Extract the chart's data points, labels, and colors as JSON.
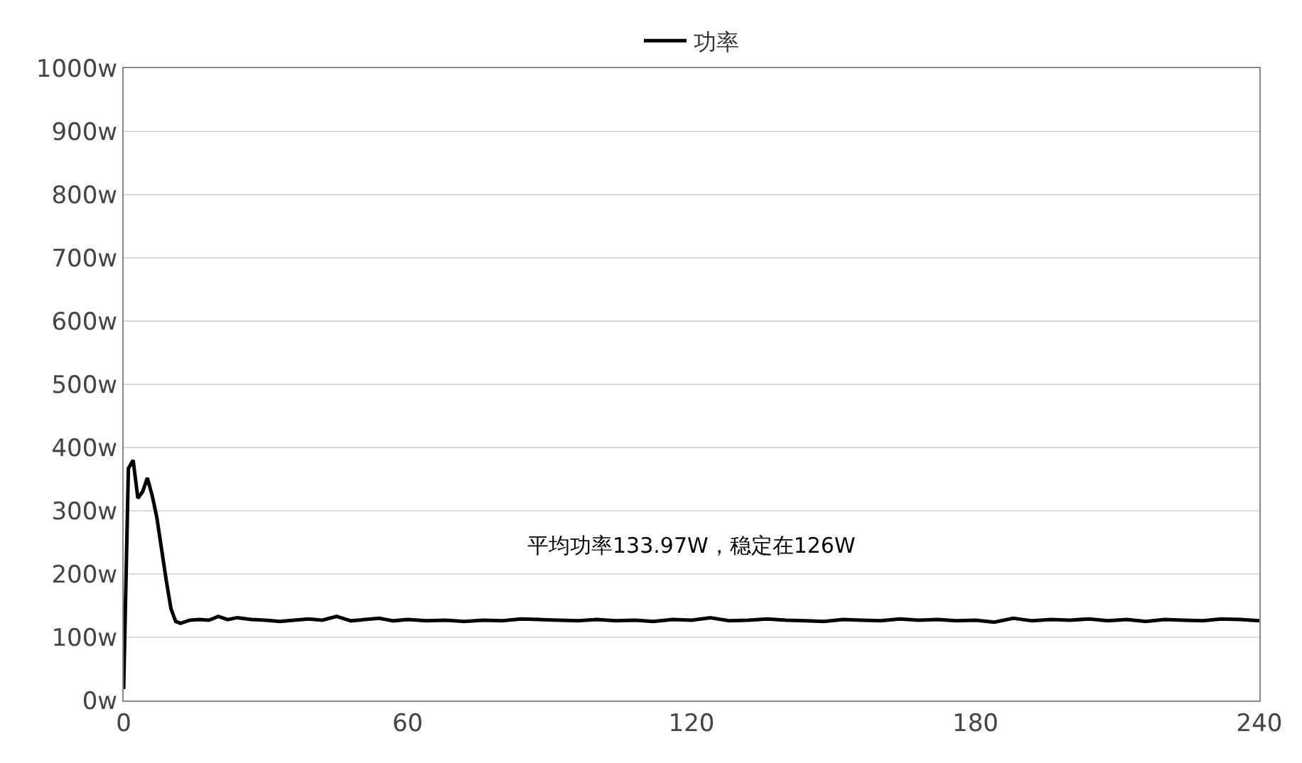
{
  "chart_data": {
    "type": "line",
    "x": [
      0,
      1,
      2,
      3,
      4,
      5,
      6,
      7,
      8,
      9,
      10,
      11,
      12,
      14,
      16,
      18,
      20,
      22,
      24,
      27,
      30,
      33,
      36,
      39,
      42,
      45,
      48,
      51,
      54,
      57,
      60,
      64,
      68,
      72,
      76,
      80,
      84,
      88,
      92,
      96,
      100,
      104,
      108,
      112,
      116,
      120,
      124,
      128,
      132,
      136,
      140,
      144,
      148,
      152,
      156,
      160,
      164,
      168,
      172,
      176,
      180,
      184,
      188,
      192,
      196,
      200,
      204,
      208,
      212,
      216,
      220,
      224,
      228,
      232,
      236,
      240
    ],
    "series": [
      {
        "name": "功率",
        "color": "#000000",
        "values": [
          18,
          367,
          380,
          320,
          330,
          352,
          325,
          290,
          240,
          190,
          145,
          125,
          122,
          127,
          128,
          127,
          133,
          128,
          131,
          128,
          127,
          125,
          127,
          129,
          127,
          133,
          126,
          128,
          130,
          126,
          128,
          126,
          127,
          125,
          127,
          126,
          129,
          128,
          127,
          126,
          128,
          126,
          127,
          125,
          128,
          127,
          131,
          126,
          127,
          129,
          127,
          126,
          125,
          128,
          127,
          126,
          129,
          127,
          128,
          126,
          127,
          124,
          130,
          126,
          128,
          127,
          129,
          126,
          128,
          125,
          128,
          127,
          126,
          129,
          128,
          126
        ]
      }
    ],
    "ylim": [
      0,
      1000
    ],
    "yticks": [
      {
        "value": 0,
        "label": "0w"
      },
      {
        "value": 100,
        "label": "100w"
      },
      {
        "value": 200,
        "label": "200w"
      },
      {
        "value": 300,
        "label": "300w"
      },
      {
        "value": 400,
        "label": "400w"
      },
      {
        "value": 500,
        "label": "500w"
      },
      {
        "value": 600,
        "label": "600w"
      },
      {
        "value": 700,
        "label": "700w"
      },
      {
        "value": 800,
        "label": "800w"
      },
      {
        "value": 900,
        "label": "900w"
      },
      {
        "value": 1000,
        "label": "1000w"
      }
    ],
    "xlim": [
      0,
      240
    ],
    "xticks": [
      0,
      60,
      120,
      180,
      240
    ],
    "annotations": [
      "平均功率133.97W，稳定在126W"
    ],
    "grid": "y",
    "legend": "top",
    "marker": "none",
    "line_style": "solid"
  }
}
